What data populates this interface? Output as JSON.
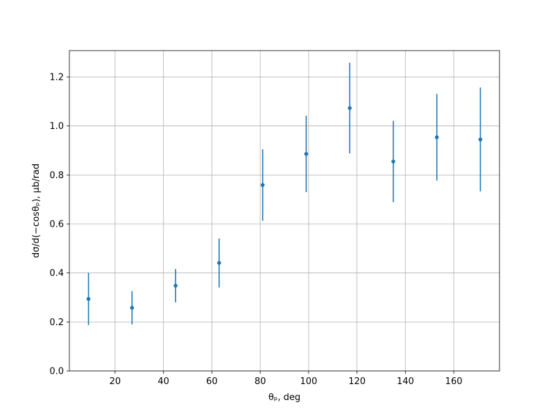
{
  "chart_data": {
    "type": "errorbar",
    "x_label": "θₚ, deg",
    "y_label": "dσ/d(−cosθₚ), μb/rad",
    "x": [
      9,
      27,
      45,
      63,
      81,
      99,
      117,
      135,
      153,
      171
    ],
    "values": [
      0.294,
      0.258,
      0.348,
      0.441,
      0.759,
      0.886,
      1.073,
      0.855,
      0.954,
      0.945
    ],
    "errors": [
      0.107,
      0.068,
      0.068,
      0.1,
      0.146,
      0.156,
      0.185,
      0.166,
      0.177,
      0.212
    ],
    "color": "#1f77b4",
    "xlim": [
      1.1,
      178.9
    ],
    "ylim": [
      0,
      1.3077
    ],
    "xticks": [
      20,
      40,
      60,
      80,
      100,
      120,
      140,
      160
    ],
    "yticks": [
      {
        "value": 0,
        "label": "0.0"
      },
      0.2,
      0.4,
      0.6,
      0.8,
      {
        "value": 1,
        "label": "1.0"
      },
      1.2
    ],
    "grid": true
  }
}
